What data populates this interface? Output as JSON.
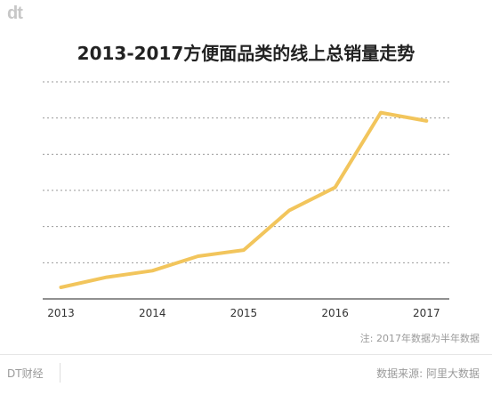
{
  "logo": "dt",
  "chart_data": {
    "type": "line",
    "title": "2013-2017方便面品类的线上总销量走势",
    "xlabel": "",
    "ylabel": "",
    "x": [
      2013.0,
      2013.5,
      2014.0,
      2014.5,
      2015.0,
      2015.5,
      2016.0,
      2016.5,
      2017.0
    ],
    "series": [
      {
        "values": [
          3.2,
          6.0,
          7.8,
          11.8,
          13.5,
          24.5,
          30.8,
          51.5,
          49.2
        ]
      }
    ],
    "xticks": [
      "2013",
      "2014",
      "2015",
      "2016",
      "2017"
    ],
    "xlim": [
      2013.0,
      2017.0
    ],
    "ylim": [
      0,
      60
    ],
    "grid": true,
    "line_color": "#f2c55c"
  },
  "note": "注: 2017年数据为半年数据",
  "footer": {
    "brand": "DT财经",
    "source": "数据来源: 阿里大数据"
  }
}
